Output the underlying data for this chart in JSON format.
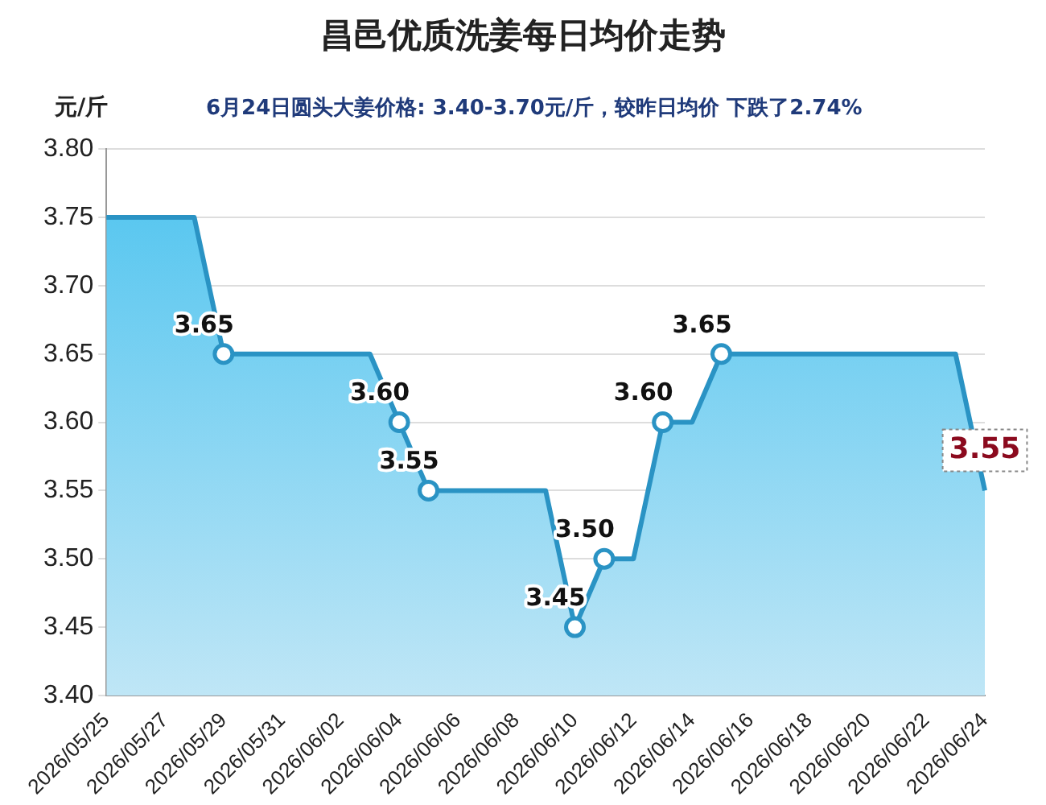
{
  "chart_data": {
    "type": "area",
    "title": "昌邑优质洗姜每日均价走势",
    "subtitle": "6月24日圆头大姜价格: 3.40-3.70元/斤，较昨日均价 下跌了2.74%",
    "ylabel": "元/斤",
    "categories": [
      "2026/05/25",
      null,
      "2026/05/27",
      null,
      "2026/05/29",
      null,
      "2026/05/31",
      null,
      "2026/06/02",
      null,
      "2026/06/04",
      null,
      "2026/06/06",
      null,
      "2026/06/08",
      null,
      "2026/06/10",
      null,
      "2026/06/12",
      null,
      "2026/06/14",
      null,
      "2026/06/16",
      null,
      "2026/06/18",
      null,
      "2026/06/20",
      null,
      "2026/06/22",
      null,
      "2026/06/24"
    ],
    "series": [
      {
        "color": "#2a93c4",
        "values": [
          3.75,
          3.75,
          3.75,
          3.75,
          3.65,
          3.65,
          3.65,
          3.65,
          3.65,
          3.65,
          3.6,
          3.55,
          3.55,
          3.55,
          3.55,
          3.55,
          3.45,
          3.5,
          3.5,
          3.6,
          3.6,
          3.65,
          3.65,
          3.65,
          3.65,
          3.65,
          3.65,
          3.65,
          3.65,
          3.65,
          3.55
        ],
        "value_labels": [
          null,
          null,
          null,
          null,
          "3.65",
          null,
          null,
          null,
          null,
          null,
          "3.60",
          "3.55",
          null,
          null,
          null,
          null,
          "3.45",
          "3.50",
          null,
          "3.60",
          null,
          "3.65",
          null,
          null,
          null,
          null,
          null,
          null,
          null,
          null,
          null
        ]
      }
    ],
    "ylim": [
      3.4,
      3.8
    ],
    "yticks": [
      {
        "value": 3.4,
        "label": "3.40"
      },
      {
        "value": 3.45,
        "label": "3.45"
      },
      {
        "value": 3.5,
        "label": "3.50"
      },
      {
        "value": 3.55,
        "label": "3.55"
      },
      {
        "value": 3.6,
        "label": "3.60"
      },
      {
        "value": 3.65,
        "label": "3.65"
      },
      {
        "value": 3.7,
        "label": "3.70"
      },
      {
        "value": 3.75,
        "label": "3.75"
      },
      {
        "value": 3.8,
        "label": "3.80"
      }
    ],
    "annotations": [
      {
        "text": "3.55",
        "x": "2026/06/24",
        "y": 3.55
      }
    ],
    "grid": "y",
    "legend": false,
    "line_style": "solid"
  }
}
